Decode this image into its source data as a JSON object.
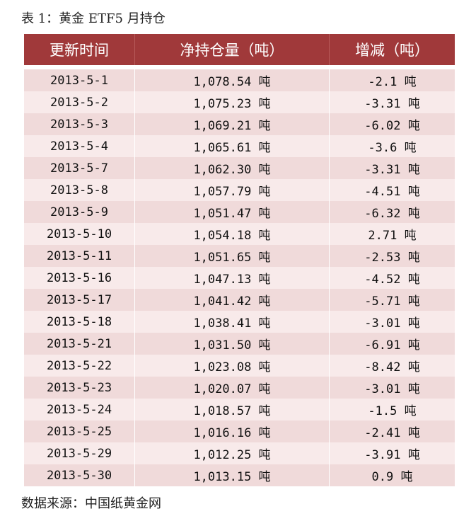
{
  "caption": "表 1：黄金 ETF5 月持仓",
  "source": "数据来源：中国纸黄金网",
  "colors": {
    "header": "#a0393a",
    "row_dark": "#f0dada",
    "row_light": "#f8eaea"
  },
  "headers": [
    "更新时间",
    "净持仓量（吨）",
    "增减（吨）"
  ],
  "rows": [
    [
      "2013-5-1",
      "1,078.54 吨",
      "-2.1 吨"
    ],
    [
      "2013-5-2",
      "1,075.23 吨",
      "-3.31 吨"
    ],
    [
      "2013-5-3",
      "1,069.21 吨",
      "-6.02 吨"
    ],
    [
      "2013-5-4",
      "1,065.61 吨",
      "-3.6 吨"
    ],
    [
      "2013-5-7",
      "1,062.30 吨",
      "-3.31 吨"
    ],
    [
      "2013-5-8",
      "1,057.79 吨",
      "-4.51 吨"
    ],
    [
      "2013-5-9",
      "1,051.47 吨",
      "-6.32 吨"
    ],
    [
      "2013-5-10",
      "1,054.18 吨",
      "2.71 吨"
    ],
    [
      "2013-5-11",
      "1,051.65 吨",
      "-2.53 吨"
    ],
    [
      "2013-5-16",
      "1,047.13 吨",
      "-4.52 吨"
    ],
    [
      "2013-5-17",
      "1,041.42 吨",
      "-5.71 吨"
    ],
    [
      "2013-5-18",
      "1,038.41 吨",
      "-3.01 吨"
    ],
    [
      "2013-5-21",
      "1,031.50 吨",
      "-6.91 吨"
    ],
    [
      "2013-5-22",
      "1,023.08 吨",
      "-8.42 吨"
    ],
    [
      "2013-5-23",
      "1,020.07 吨",
      "-3.01 吨"
    ],
    [
      "2013-5-24",
      "1,018.57 吨",
      "-1.5 吨"
    ],
    [
      "2013-5-25",
      "1,016.16 吨",
      "-2.41 吨"
    ],
    [
      "2013-5-29",
      "1,012.25 吨",
      "-3.91 吨"
    ],
    [
      "2013-5-30",
      "1,013.15 吨",
      "0.9 吨"
    ]
  ]
}
